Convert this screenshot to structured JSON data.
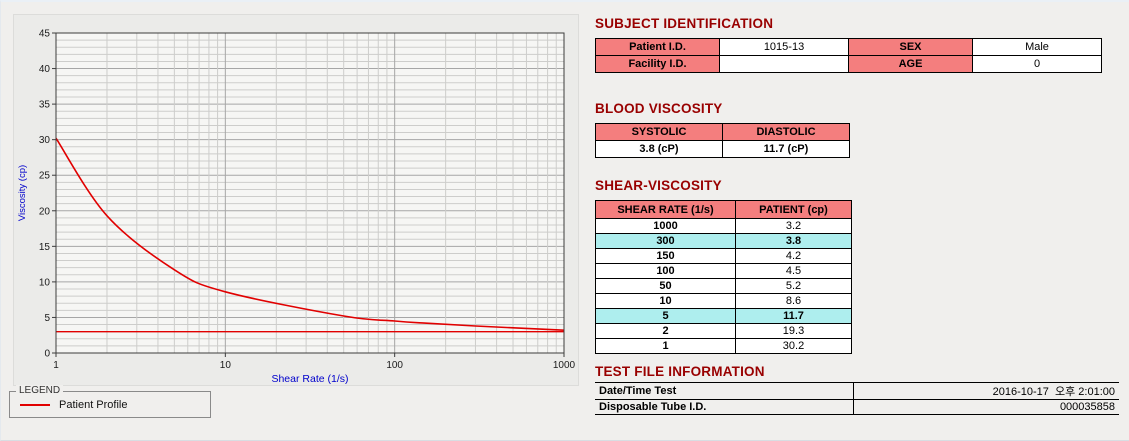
{
  "colors": {
    "title_red": "#990000",
    "table_header_bg": "#f47e7e",
    "highlight_bg": "#aeeeee",
    "series_red": "#e10000",
    "axis_label_blue": "#0000cc"
  },
  "chart_data": {
    "type": "line",
    "xlabel": "Shear Rate (1/s)",
    "ylabel": "Viscosity (cp)",
    "x_scale": "log",
    "xlim": [
      1,
      1000
    ],
    "ylim": [
      0,
      45
    ],
    "x_ticks": [
      1,
      10,
      100,
      1000
    ],
    "y_ticks": [
      0,
      5,
      10,
      15,
      20,
      25,
      30,
      35,
      40,
      45
    ],
    "grid": true,
    "legend_position": "bottom-left-outside",
    "series": [
      {
        "name": "Patient Profile",
        "x": [
          1,
          2,
          5,
          10,
          50,
          100,
          150,
          300,
          1000
        ],
        "y": [
          30.2,
          19.3,
          11.7,
          8.6,
          5.2,
          4.5,
          4.2,
          3.8,
          3.2
        ],
        "color": "#e10000"
      }
    ],
    "reference_line": {
      "y": 3.0,
      "color": "#e10000"
    }
  },
  "legend": {
    "title": "LEGEND",
    "items": [
      {
        "label": "Patient Profile"
      }
    ]
  },
  "subject_identification": {
    "title": "SUBJECT IDENTIFICATION",
    "rows": [
      {
        "label1": "Patient I.D.",
        "value1": "1015-13",
        "label2": "SEX",
        "value2": "Male"
      },
      {
        "label1": "Facility I.D.",
        "value1": "",
        "label2": "AGE",
        "value2": "0"
      }
    ]
  },
  "blood_viscosity": {
    "title": "BLOOD VISCOSITY",
    "headers": [
      "SYSTOLIC",
      "DIASTOLIC"
    ],
    "values": [
      "3.8 (cP)",
      "11.7 (cP)"
    ]
  },
  "shear_viscosity": {
    "title": "SHEAR-VISCOSITY",
    "headers": [
      "SHEAR RATE (1/s)",
      "PATIENT (cp)"
    ],
    "rows": [
      {
        "rate": "1000",
        "value": "3.2",
        "highlight": false
      },
      {
        "rate": "300",
        "value": "3.8",
        "highlight": true
      },
      {
        "rate": "150",
        "value": "4.2",
        "highlight": false
      },
      {
        "rate": "100",
        "value": "4.5",
        "highlight": false
      },
      {
        "rate": "50",
        "value": "5.2",
        "highlight": false
      },
      {
        "rate": "10",
        "value": "8.6",
        "highlight": false
      },
      {
        "rate": "5",
        "value": "11.7",
        "highlight": true
      },
      {
        "rate": "2",
        "value": "19.3",
        "highlight": false
      },
      {
        "rate": "1",
        "value": "30.2",
        "highlight": false
      }
    ]
  },
  "test_file_information": {
    "title": "TEST FILE INFORMATION",
    "rows": [
      {
        "label": "Date/Time Test",
        "value": "2016-10-17  오후 2:01:00"
      },
      {
        "label": "Disposable Tube I.D.",
        "value": "000035858"
      }
    ]
  }
}
